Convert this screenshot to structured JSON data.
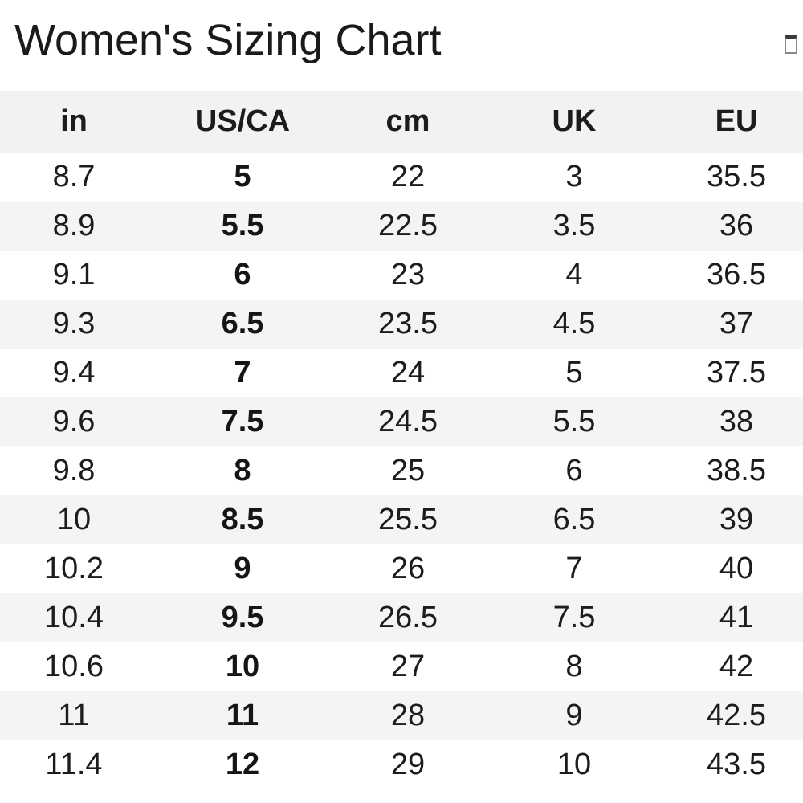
{
  "title": "Women's Sizing Chart",
  "icons": {
    "top_right": "placeholder-box-icon"
  },
  "colors": {
    "header_bg": "#f2f2f3",
    "stripe_bg": "#f4f4f5",
    "row_bg": "#ffffff",
    "text": "#1c1c1e"
  },
  "chart_data": {
    "type": "table",
    "title": "Women's Sizing Chart",
    "columns": [
      "in",
      "US/CA",
      "cm",
      "UK",
      "EU"
    ],
    "rows": [
      [
        "8.7",
        "5",
        "22",
        "3",
        "35.5"
      ],
      [
        "8.9",
        "5.5",
        "22.5",
        "3.5",
        "36"
      ],
      [
        "9.1",
        "6",
        "23",
        "4",
        "36.5"
      ],
      [
        "9.3",
        "6.5",
        "23.5",
        "4.5",
        "37"
      ],
      [
        "9.4",
        "7",
        "24",
        "5",
        "37.5"
      ],
      [
        "9.6",
        "7.5",
        "24.5",
        "5.5",
        "38"
      ],
      [
        "9.8",
        "8",
        "25",
        "6",
        "38.5"
      ],
      [
        "10",
        "8.5",
        "25.5",
        "6.5",
        "39"
      ],
      [
        "10.2",
        "9",
        "26",
        "7",
        "40"
      ],
      [
        "10.4",
        "9.5",
        "26.5",
        "7.5",
        "41"
      ],
      [
        "10.6",
        "10",
        "27",
        "8",
        "42"
      ],
      [
        "11",
        "11",
        "28",
        "9",
        "42.5"
      ],
      [
        "11.4",
        "12",
        "29",
        "10",
        "43.5"
      ]
    ],
    "layout": {
      "striped": true,
      "stripe_start": "white",
      "align": "center",
      "header_style": "bold",
      "bold_column": "US/CA",
      "grid": false
    }
  }
}
